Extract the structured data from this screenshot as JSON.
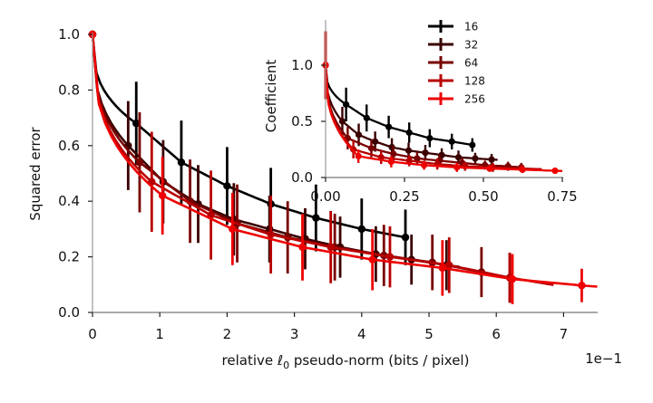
{
  "chart_data": [
    {
      "type": "line",
      "panel": "main",
      "title": "",
      "xlabel": "relative ℓ0 pseudo-norm (bits / pixel)",
      "xlabel_prefix": "relative ",
      "xlabel_symbol": "ℓ",
      "xlabel_sub": "0",
      "xlabel_suffix": " pseudo-norm (bits / pixel)",
      "ylabel": "Squared error",
      "x_offset_label": "1e−1",
      "xlim": [
        0,
        7.5
      ],
      "ylim": [
        0,
        1.0
      ],
      "xticks": [
        0,
        1,
        2,
        3,
        4,
        5,
        6,
        7
      ],
      "xtick_labels": [
        "0",
        "1",
        "2",
        "3",
        "4",
        "5",
        "6",
        "7"
      ],
      "yticks": [
        0.0,
        0.2,
        0.4,
        0.6,
        0.8,
        1.0
      ],
      "ytick_labels": [
        "0.0",
        "0.2",
        "0.4",
        "0.6",
        "0.8",
        "1.0"
      ],
      "grid": false,
      "series": [
        {
          "name": "16",
          "color": "#000000",
          "x": [
            0,
            0.65,
            1.32,
            2.0,
            2.65,
            3.32,
            4.0,
            4.65
          ],
          "y": [
            1.0,
            0.68,
            0.54,
            0.455,
            0.39,
            0.34,
            0.3,
            0.27
          ],
          "err": [
            0.0,
            0.15,
            0.15,
            0.14,
            0.13,
            0.12,
            0.11,
            0.1
          ],
          "fit_xmax": 4.65
        },
        {
          "name": "32",
          "color": "#3a0000",
          "x": [
            0,
            0.53,
            1.05,
            1.57,
            2.1,
            2.63,
            3.16,
            3.68,
            4.21,
            4.74,
            5.26
          ],
          "y": [
            1.0,
            0.6,
            0.47,
            0.39,
            0.335,
            0.3,
            0.265,
            0.235,
            0.21,
            0.19,
            0.17
          ],
          "err": [
            0.0,
            0.16,
            0.15,
            0.14,
            0.13,
            0.12,
            0.11,
            0.11,
            0.1,
            0.09,
            0.09
          ],
          "fit_xmax": 5.45
        },
        {
          "name": "64",
          "color": "#780000",
          "x": [
            0,
            0.7,
            1.45,
            2.15,
            2.9,
            3.6,
            4.33,
            5.05,
            5.78,
            6.2
          ],
          "y": [
            1.0,
            0.54,
            0.4,
            0.32,
            0.27,
            0.235,
            0.205,
            0.18,
            0.145,
            0.125
          ],
          "err": [
            0.0,
            0.18,
            0.15,
            0.14,
            0.13,
            0.12,
            0.11,
            0.1,
            0.09,
            0.09
          ],
          "fit_xmax": 6.3
        },
        {
          "name": "128",
          "color": "#b80000",
          "x": [
            0,
            0.88,
            1.76,
            2.65,
            3.54,
            4.42,
            5.3,
            6.2
          ],
          "y": [
            1.0,
            0.47,
            0.35,
            0.28,
            0.235,
            0.2,
            0.17,
            0.125
          ],
          "err": [
            0.0,
            0.18,
            0.16,
            0.14,
            0.13,
            0.11,
            0.1,
            0.09
          ],
          "fit_xmax": 6.85
        },
        {
          "name": "256",
          "color": "#ee0000",
          "x": [
            0,
            1.04,
            2.08,
            3.12,
            4.16,
            5.2,
            6.24,
            7.27
          ],
          "y": [
            1.0,
            0.42,
            0.3,
            0.235,
            0.19,
            0.16,
            0.12,
            0.097
          ],
          "err": [
            0.0,
            0.14,
            0.13,
            0.12,
            0.11,
            0.1,
            0.09,
            0.06
          ],
          "fit_xmax": 7.5
        }
      ]
    },
    {
      "type": "line",
      "panel": "inset",
      "title": "",
      "xlabel": "",
      "ylabel": "Coefficient",
      "xlim": [
        0,
        0.75
      ],
      "ylim": [
        0,
        1.4
      ],
      "xticks": [
        0.0,
        0.25,
        0.5,
        0.75
      ],
      "xtick_labels": [
        "0.00",
        "0.25",
        "0.50",
        "0.75"
      ],
      "yticks": [
        0.0,
        0.5,
        1.0
      ],
      "ytick_labels": [
        "0.0",
        "0.5",
        "1.0"
      ],
      "grid": false,
      "legend": {
        "position": "top-right",
        "entries": [
          "16",
          "32",
          "64",
          "128",
          "256"
        ]
      },
      "series": [
        {
          "name": "16",
          "color": "#000000",
          "x": [
            0,
            0.065,
            0.13,
            0.2,
            0.265,
            0.33,
            0.4,
            0.465
          ],
          "y": [
            1.0,
            0.65,
            0.53,
            0.45,
            0.4,
            0.35,
            0.32,
            0.29
          ],
          "err": [
            0.0,
            0.15,
            0.12,
            0.1,
            0.09,
            0.08,
            0.07,
            0.06
          ],
          "fit_xmax": 0.465
        },
        {
          "name": "32",
          "color": "#3a0000",
          "x": [
            0,
            0.053,
            0.105,
            0.157,
            0.21,
            0.263,
            0.316,
            0.368,
            0.421,
            0.474,
            0.526
          ],
          "y": [
            1.0,
            0.5,
            0.38,
            0.32,
            0.27,
            0.24,
            0.22,
            0.2,
            0.18,
            0.17,
            0.16
          ],
          "err": [
            0.3,
            0.13,
            0.1,
            0.09,
            0.08,
            0.07,
            0.07,
            0.06,
            0.06,
            0.05,
            0.05
          ],
          "fit_xmax": 0.545
        },
        {
          "name": "64",
          "color": "#780000",
          "x": [
            0,
            0.07,
            0.145,
            0.215,
            0.29,
            0.36,
            0.433,
            0.505,
            0.578,
            0.62
          ],
          "y": [
            1.0,
            0.35,
            0.26,
            0.21,
            0.17,
            0.15,
            0.13,
            0.11,
            0.1,
            0.09
          ],
          "err": [
            0.3,
            0.1,
            0.08,
            0.07,
            0.06,
            0.05,
            0.05,
            0.04,
            0.04,
            0.04
          ],
          "fit_xmax": 0.63
        },
        {
          "name": "128",
          "color": "#b80000",
          "x": [
            0,
            0.088,
            0.176,
            0.265,
            0.354,
            0.442,
            0.53,
            0.62
          ],
          "y": [
            1.0,
            0.25,
            0.18,
            0.15,
            0.12,
            0.1,
            0.09,
            0.08
          ],
          "err": [
            0.3,
            0.08,
            0.06,
            0.05,
            0.05,
            0.04,
            0.04,
            0.03
          ],
          "fit_xmax": 0.685
        },
        {
          "name": "256",
          "color": "#ee0000",
          "x": [
            0,
            0.104,
            0.208,
            0.312,
            0.416,
            0.52,
            0.624,
            0.727
          ],
          "y": [
            1.0,
            0.19,
            0.14,
            0.11,
            0.09,
            0.08,
            0.07,
            0.06
          ],
          "err": [
            0.3,
            0.06,
            0.05,
            0.04,
            0.04,
            0.03,
            0.03,
            0.02
          ],
          "fit_xmax": 0.75
        }
      ]
    }
  ]
}
